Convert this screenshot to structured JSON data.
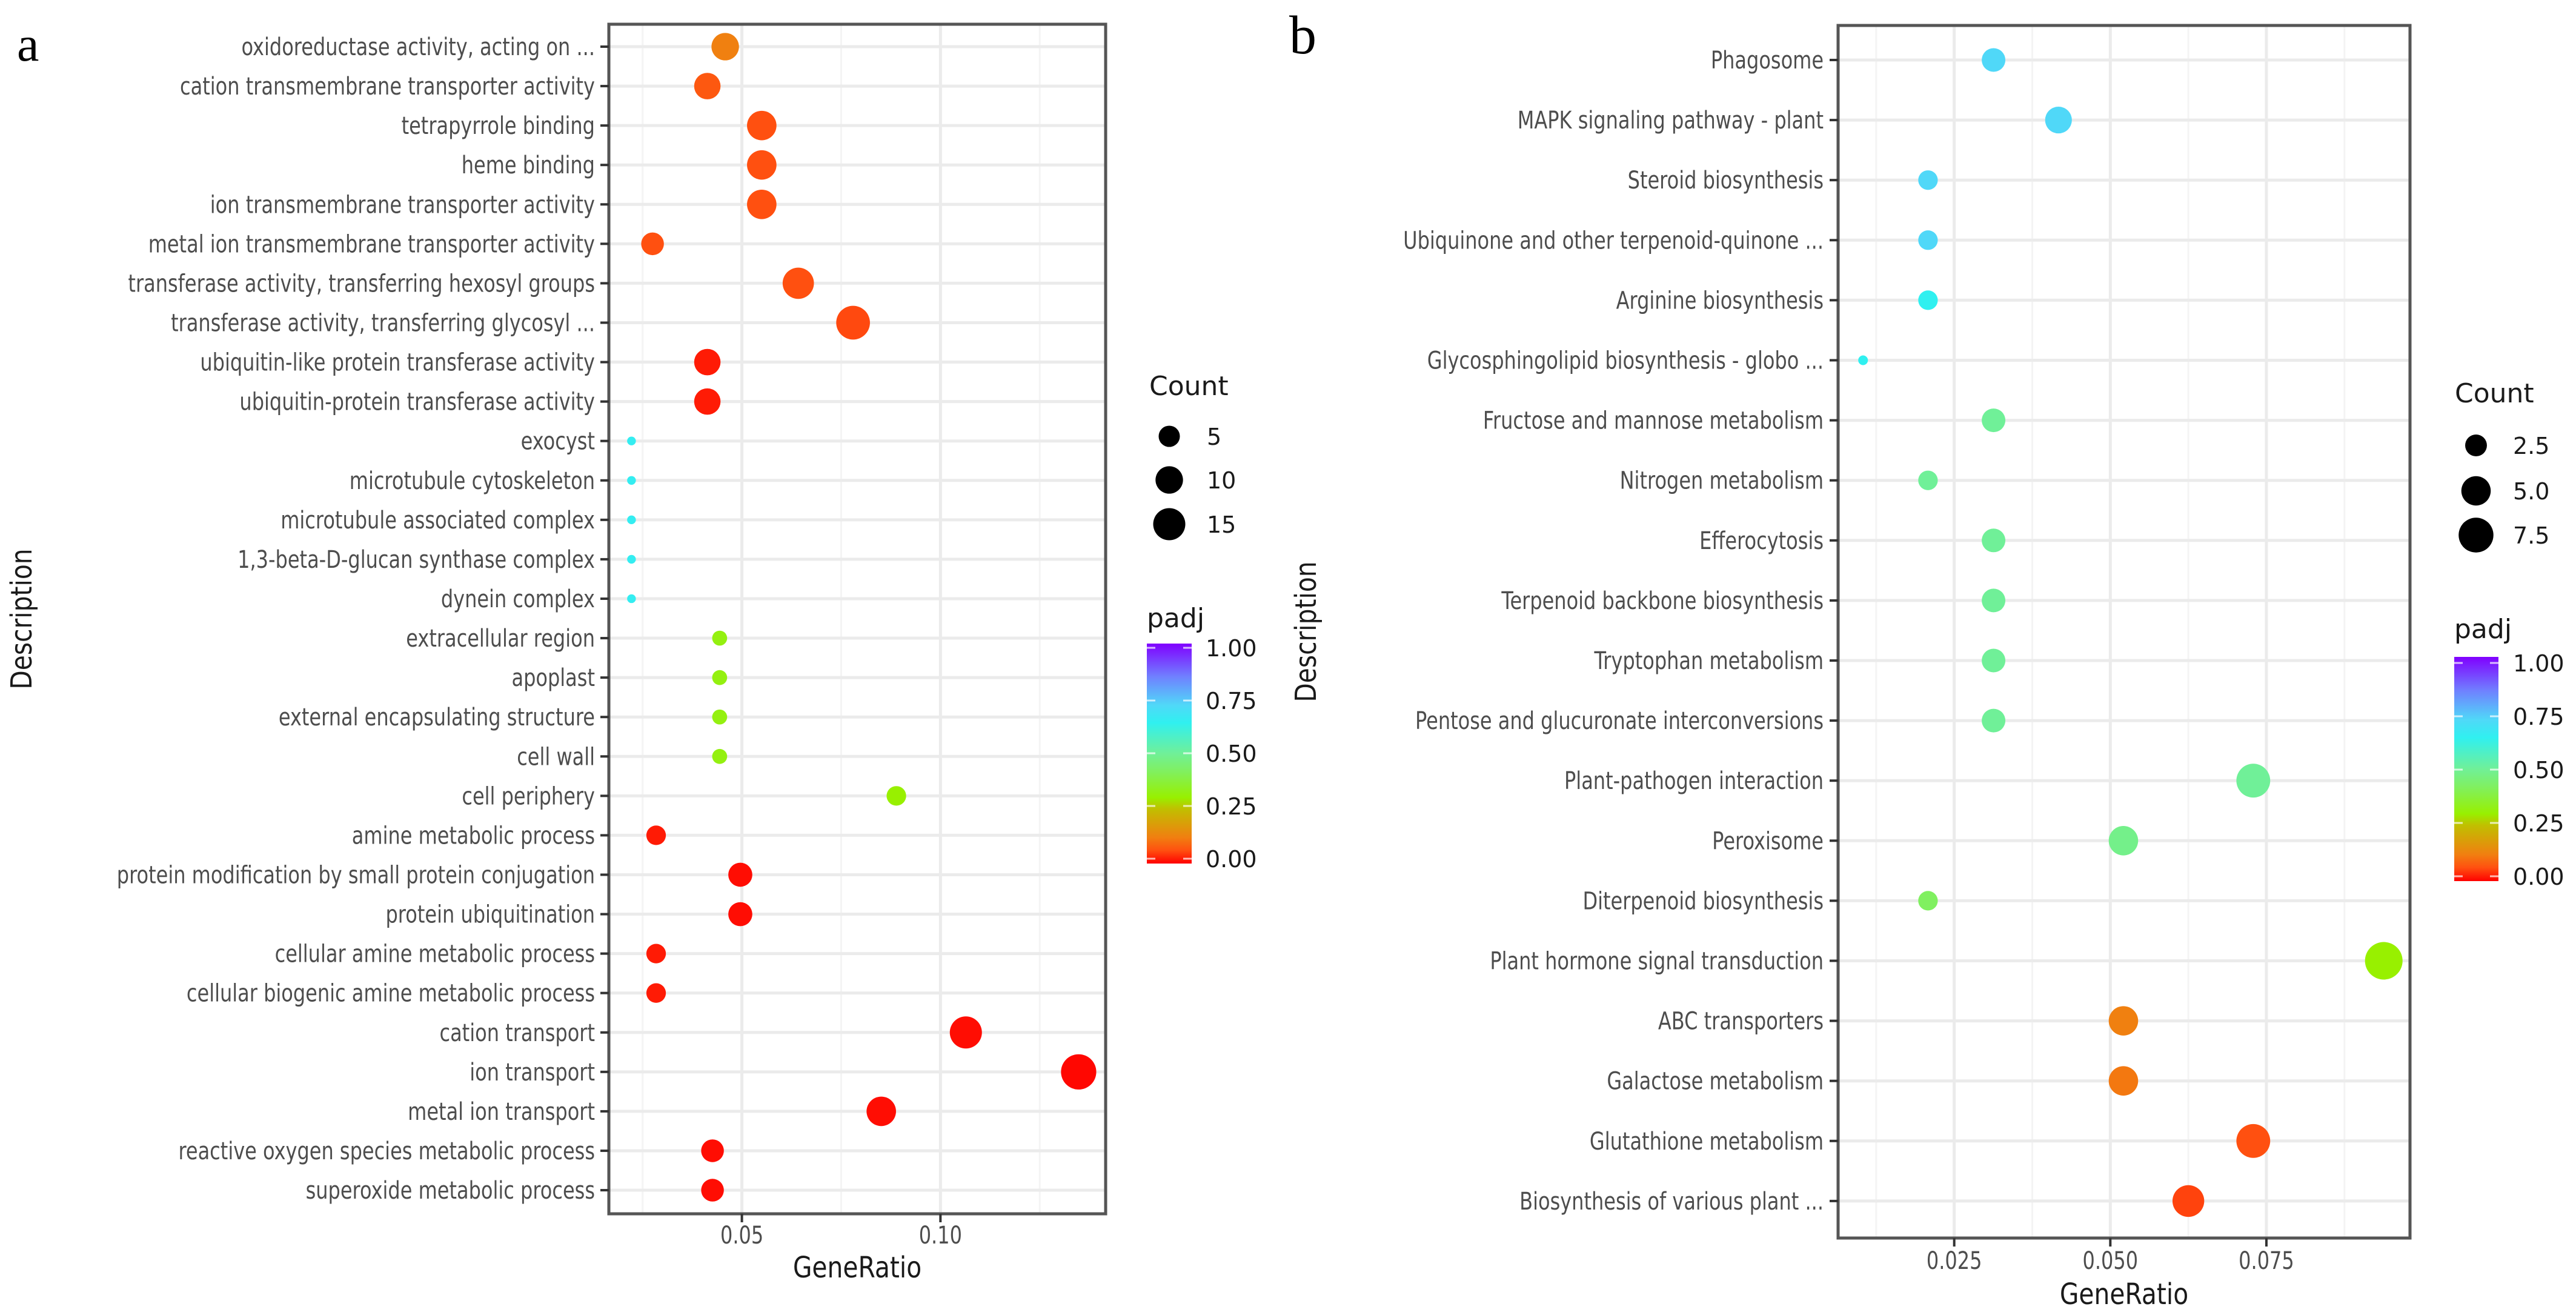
{
  "chart_data": [
    {
      "panel_label": "a",
      "type": "scatter",
      "xlabel": "GeneRatio",
      "ylabel": "Description",
      "xlim": [
        0.0165,
        0.1416
      ],
      "xticks": [
        0.05,
        0.1
      ],
      "xtick_labels": [
        "0.05",
        "0.10"
      ],
      "grid": true,
      "categories": [
        "oxidoreductase activity, acting on ...",
        "cation transmembrane transporter activity",
        "tetrapyrrole binding",
        "heme binding",
        "ion transmembrane transporter activity",
        "metal ion transmembrane transporter activity",
        "transferase activity, transferring hexosyl groups",
        "transferase activity, transferring glycosyl ...",
        "ubiquitin-like protein transferase activity",
        "ubiquitin-protein transferase activity",
        "exocyst",
        "microtubule cytoskeleton",
        "microtubule associated complex",
        "1,3-beta-D-glucan synthase complex",
        "dynein complex",
        "extracellular region",
        "apoplast",
        "external encapsulating structure",
        "cell wall",
        "cell periphery",
        "amine metabolic process",
        "protein modification by small protein conjugation",
        "protein ubiquitination",
        "cellular amine metabolic process",
        "cellular biogenic amine metabolic process",
        "cation transport",
        "ion transport",
        "metal ion transport",
        "reactive oxygen species metabolic process",
        "superoxide metabolic process"
      ],
      "gene_ratio": [
        0.0458,
        0.0413,
        0.055,
        0.055,
        0.055,
        0.0275,
        0.0642,
        0.078,
        0.0413,
        0.0413,
        0.0222,
        0.0222,
        0.0222,
        0.0222,
        0.0222,
        0.0444,
        0.0444,
        0.0444,
        0.0444,
        0.0889,
        0.0284,
        0.0496,
        0.0496,
        0.0284,
        0.0284,
        0.1064,
        0.1348,
        0.0851,
        0.0426,
        0.0426
      ],
      "count": [
        10,
        9,
        12,
        12,
        12,
        6,
        14,
        17,
        9,
        9,
        1,
        1,
        1,
        1,
        1,
        2,
        2,
        2,
        2,
        4,
        4,
        7,
        7,
        4,
        4,
        15,
        19,
        12,
        6,
        6
      ],
      "padj": [
        0.12,
        0.07,
        0.06,
        0.06,
        0.06,
        0.06,
        0.06,
        0.055,
        0.02,
        0.02,
        0.65,
        0.65,
        0.65,
        0.65,
        0.65,
        0.32,
        0.32,
        0.32,
        0.32,
        0.3,
        0.02,
        0.01,
        0.01,
        0.02,
        0.02,
        0.01,
        0.005,
        0.01,
        0.01,
        0.01
      ],
      "size_legend": {
        "title": "Count",
        "breaks": [
          5,
          10,
          15
        ],
        "labels": [
          "5",
          "10",
          "15"
        ]
      },
      "color_legend": {
        "title": "padj",
        "breaks": [
          1.0,
          0.75,
          0.5,
          0.25,
          0.0
        ],
        "labels": [
          "1.00",
          "0.75",
          "0.50",
          "0.25",
          "0.00"
        ],
        "range": [
          0,
          1
        ]
      }
    },
    {
      "panel_label": "b",
      "type": "scatter",
      "xlabel": "GeneRatio",
      "ylabel": "Description",
      "xlim": [
        0.0064,
        0.098
      ],
      "xticks": [
        0.025,
        0.05,
        0.075
      ],
      "xtick_labels": [
        "0.025",
        "0.050",
        "0.075"
      ],
      "grid": true,
      "categories": [
        "Phagosome",
        "MAPK signaling pathway - plant",
        "Steroid biosynthesis",
        "Ubiquinone and other terpenoid-quinone ...",
        "Arginine biosynthesis",
        "Glycosphingolipid biosynthesis - globo ...",
        "Fructose and mannose metabolism",
        "Nitrogen metabolism",
        "Efferocytosis",
        "Terpenoid backbone biosynthesis",
        "Tryptophan metabolism",
        "Pentose and glucuronate interconversions",
        "Plant-pathogen interaction",
        "Peroxisome",
        "Diterpenoid biosynthesis",
        "Plant hormone signal transduction",
        "ABC transporters",
        "Galactose metabolism",
        "Glutathione metabolism",
        "Biosynthesis of various plant ..."
      ],
      "gene_ratio": [
        0.0313,
        0.0417,
        0.0208,
        0.0208,
        0.0208,
        0.0104,
        0.0313,
        0.0208,
        0.0313,
        0.0313,
        0.0313,
        0.0313,
        0.0729,
        0.0521,
        0.0208,
        0.0938,
        0.0521,
        0.0521,
        0.0729,
        0.0625
      ],
      "count": [
        3,
        4,
        2,
        2,
        2,
        1,
        3,
        2,
        3,
        3,
        3,
        3,
        7,
        5,
        2,
        9,
        5,
        5,
        7,
        6
      ],
      "padj": [
        0.72,
        0.72,
        0.72,
        0.72,
        0.64,
        0.64,
        0.5,
        0.5,
        0.5,
        0.5,
        0.5,
        0.5,
        0.5,
        0.48,
        0.42,
        0.3,
        0.12,
        0.11,
        0.06,
        0.05
      ],
      "size_legend": {
        "title": "Count",
        "breaks": [
          2.5,
          5.0,
          7.5
        ],
        "labels": [
          "2.5",
          "5.0",
          "7.5"
        ]
      },
      "color_legend": {
        "title": "padj",
        "breaks": [
          1.0,
          0.75,
          0.5,
          0.25,
          0.0
        ],
        "labels": [
          "1.00",
          "0.75",
          "0.50",
          "0.25",
          "0.00"
        ],
        "range": [
          0,
          1
        ]
      }
    }
  ],
  "colorscale": [
    [
      0.0,
      "#ff0000"
    ],
    [
      0.06,
      "#ff5010"
    ],
    [
      0.12,
      "#f08010"
    ],
    [
      0.25,
      "#c0c000"
    ],
    [
      0.3,
      "#98f000"
    ],
    [
      0.42,
      "#80f060"
    ],
    [
      0.5,
      "#70f098"
    ],
    [
      0.64,
      "#30f0f0"
    ],
    [
      0.72,
      "#50d8f8"
    ],
    [
      0.85,
      "#7080ff"
    ],
    [
      1.0,
      "#8000ff"
    ]
  ],
  "colors": {
    "panel_border": "#555555",
    "grid_major": "#ebebeb",
    "grid_minor": "#f4f4f4",
    "text": "#4d4d4d",
    "legend_dot": "#000000"
  }
}
